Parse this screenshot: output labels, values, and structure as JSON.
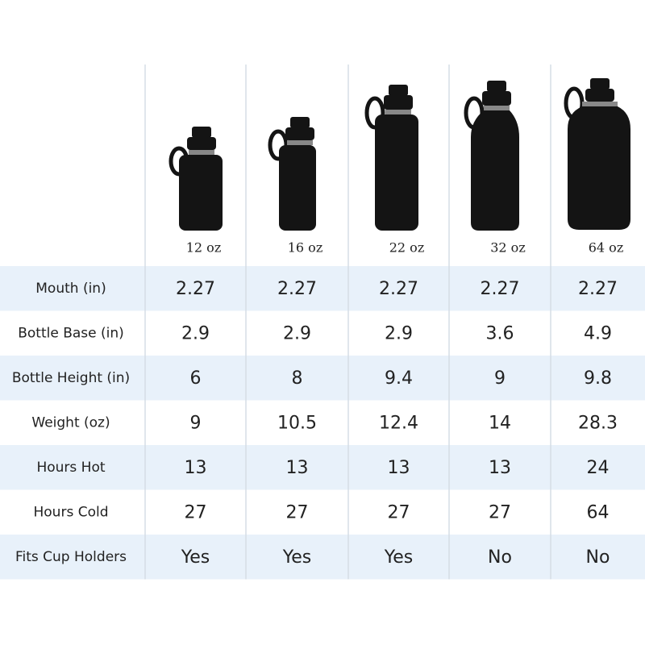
{
  "table": {
    "columns": [
      "12 oz",
      "16 oz",
      "22 oz",
      "32 oz",
      "64 oz"
    ],
    "rows": [
      {
        "label": "Mouth (in)",
        "cells": [
          "2.27",
          "2.27",
          "2.27",
          "2.27",
          "2.27"
        ]
      },
      {
        "label": "Bottle Base (in)",
        "cells": [
          "2.9",
          "2.9",
          "2.9",
          "3.6",
          "4.9"
        ]
      },
      {
        "label": "Bottle Height (in)",
        "cells": [
          "6",
          "8",
          "9.4",
          "9",
          "9.8"
        ]
      },
      {
        "label": "Weight (oz)",
        "cells": [
          "9",
          "10.5",
          "12.4",
          "14",
          "28.3"
        ]
      },
      {
        "label": "Hours Hot",
        "cells": [
          "13",
          "13",
          "13",
          "13",
          "24"
        ]
      },
      {
        "label": "Hours Cold",
        "cells": [
          "27",
          "27",
          "27",
          "27",
          "64"
        ]
      },
      {
        "label": "Fits Cup Holders",
        "cells": [
          "Yes",
          "Yes",
          "Yes",
          "No",
          "No"
        ]
      }
    ]
  }
}
